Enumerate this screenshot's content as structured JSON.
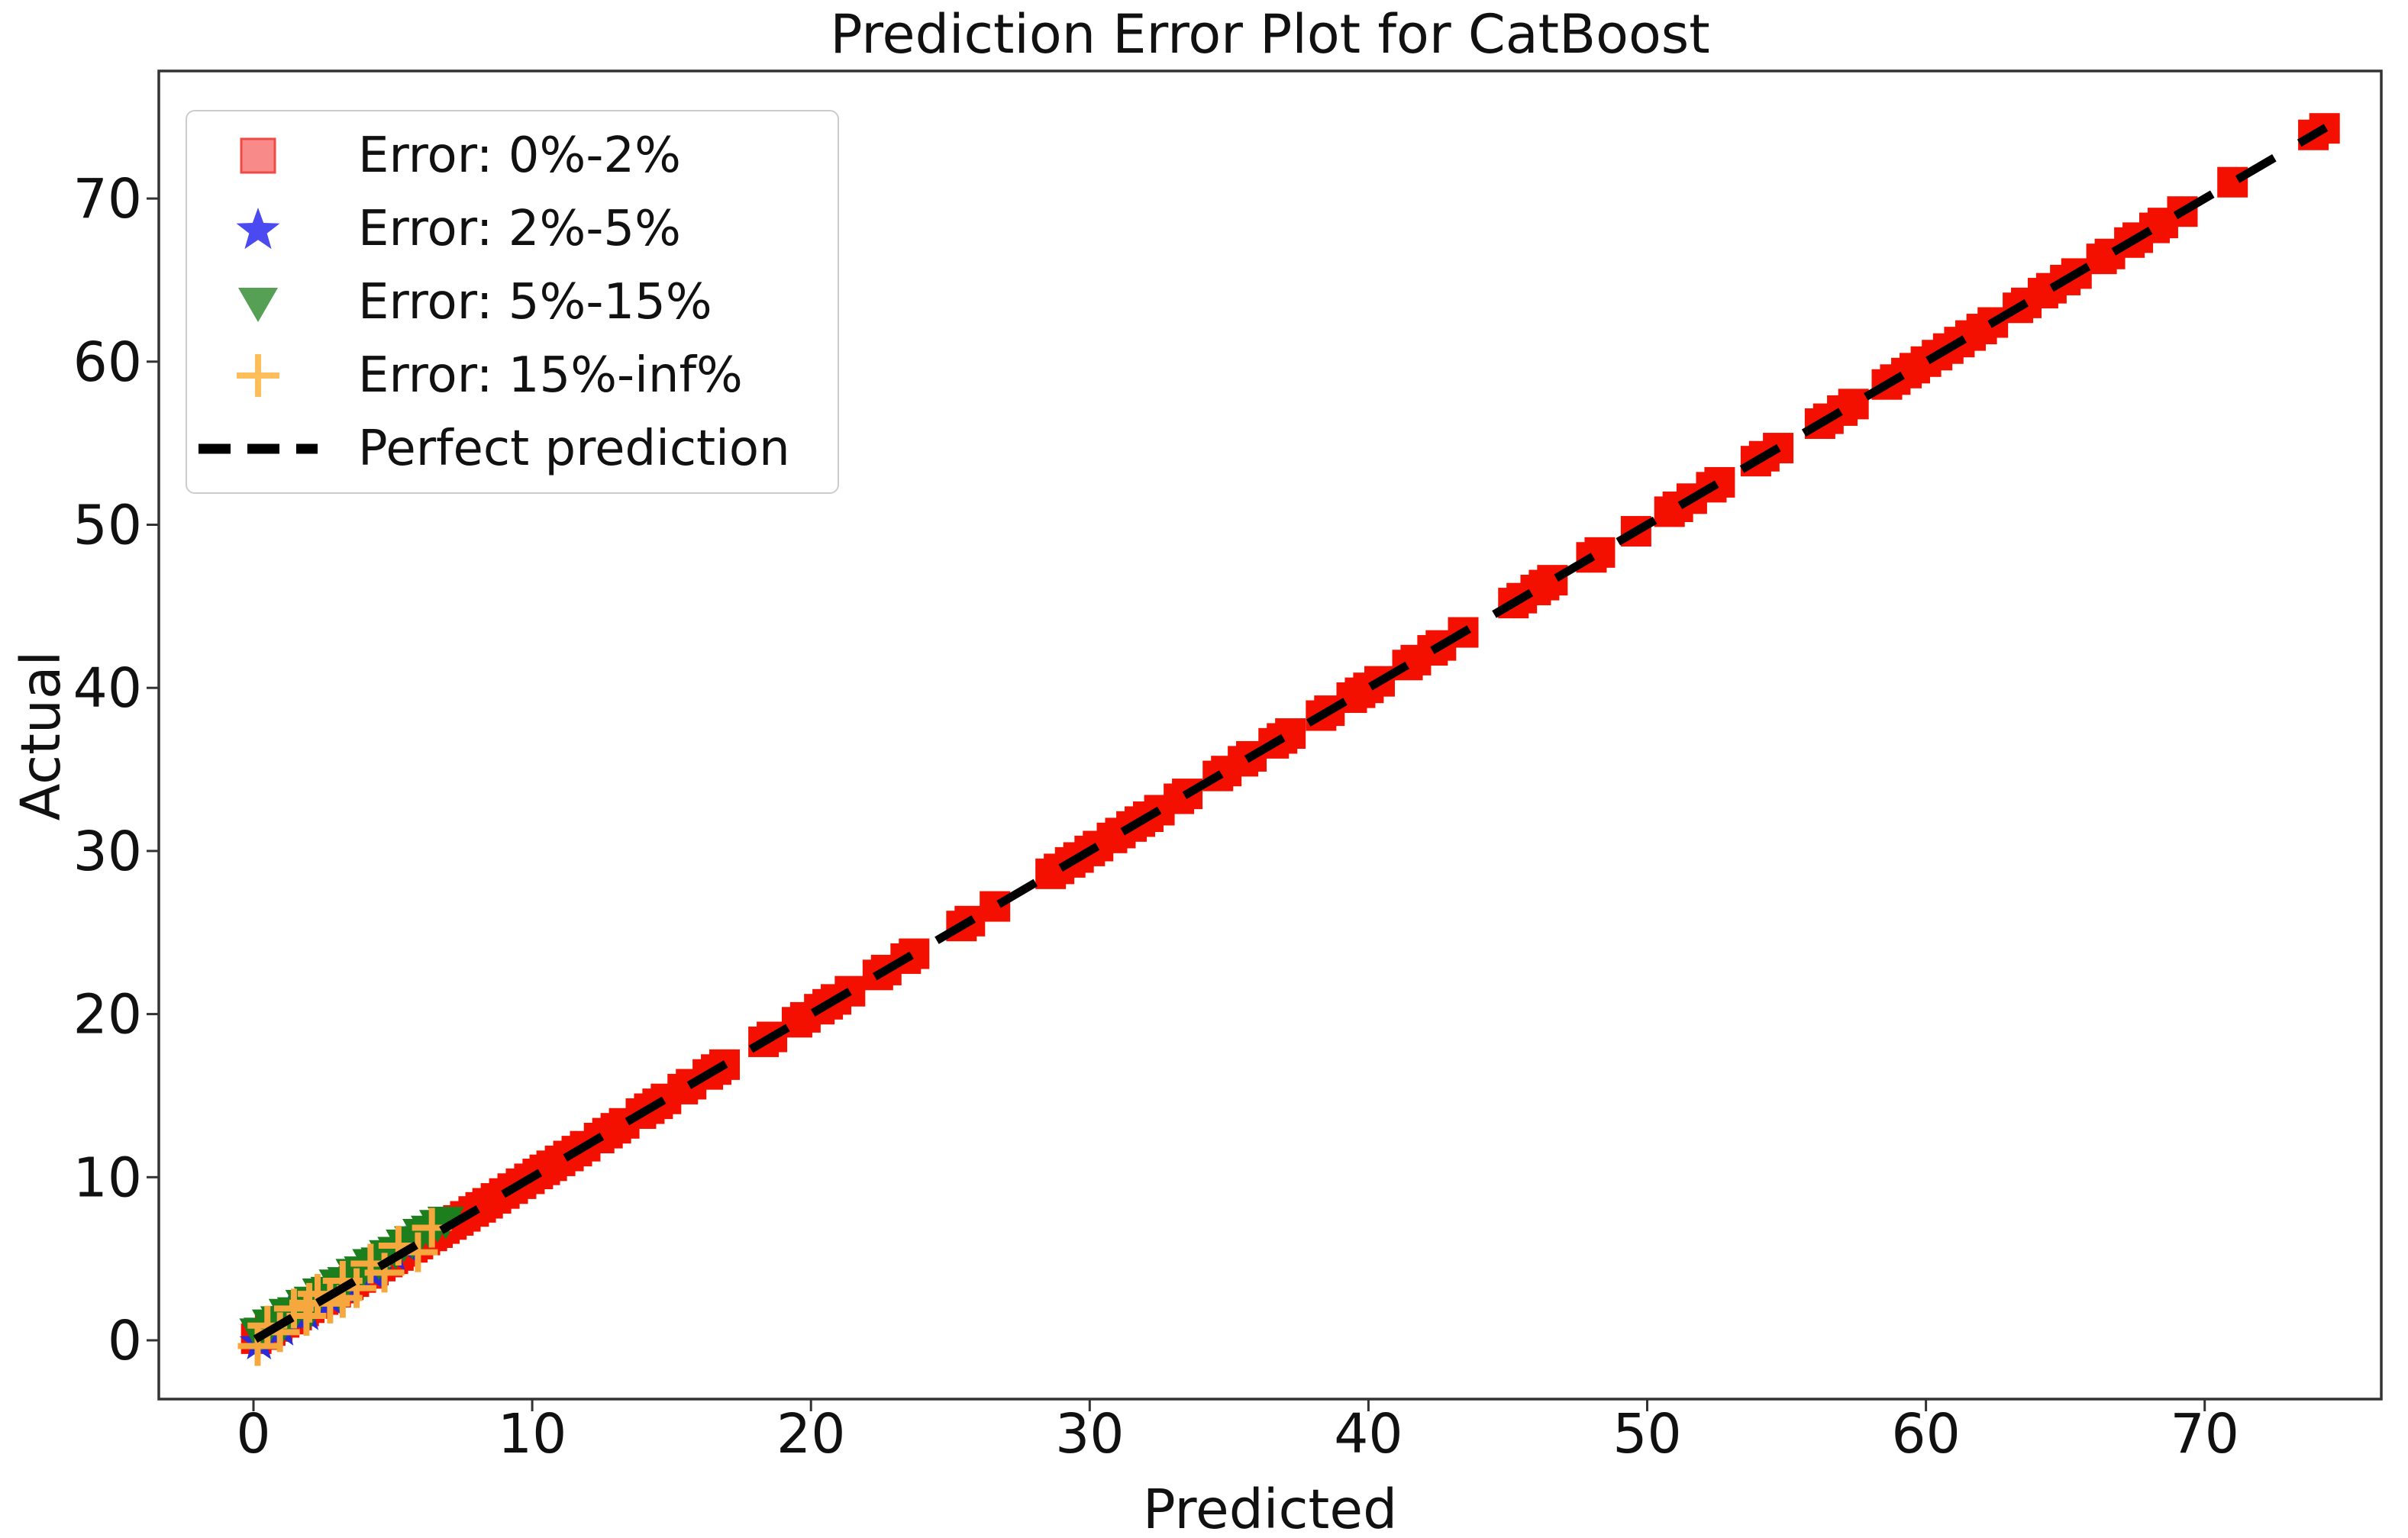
{
  "title": "Prediction Error Plot for CatBoost",
  "axes": {
    "xlabel": "Predicted",
    "ylabel": "Actual",
    "x_ticks": [
      0,
      10,
      20,
      30,
      40,
      50,
      60,
      70
    ],
    "y_ticks": [
      0,
      10,
      20,
      30,
      40,
      50,
      60,
      70
    ]
  },
  "legend": {
    "position": "upper left",
    "items": [
      {
        "label": "Error: 0%-2%",
        "marker": "square",
        "color": "#f98a8a",
        "edge_color": "#ef4a46"
      },
      {
        "label": "Error: 2%-5%",
        "marker": "star",
        "color": "#4a4af0",
        "edge_color": "#2d2dd8"
      },
      {
        "label": "Error: 5%-15%",
        "marker": "triangle_down",
        "color": "#55a055",
        "edge_color": "#347d38"
      },
      {
        "label": "Error: 15%-inf%",
        "marker": "plus",
        "color": "#ffbe5c",
        "edge_color": "#ffbe5c"
      },
      {
        "label": "Perfect prediction",
        "marker": "dashed_line",
        "color": "#000000",
        "edge_color": "#000000"
      }
    ]
  },
  "colors": {
    "background": "#ffffff",
    "frame": "#333333",
    "tick_text": "#111111",
    "series_red": "#f41000",
    "series_blue": "#2b2bd8",
    "series_green": "#1d7e1d",
    "series_orange": "#f6a83e",
    "perfect_line": "#000000"
  },
  "chart_data": {
    "type": "scatter",
    "title": "Prediction Error Plot for CatBoost",
    "xlabel": "Predicted",
    "ylabel": "Actual",
    "xlim": [
      -3.4,
      76.3
    ],
    "ylim": [
      -3.5,
      77.8
    ],
    "grid": false,
    "legend_position": "upper left",
    "reference_line": {
      "name": "Perfect prediction",
      "style": "dashed",
      "color": "#000000",
      "from": [
        0.07,
        0.07
      ],
      "to": [
        74.35,
        74.35
      ]
    },
    "series": [
      {
        "name": "Error: 0%-2%",
        "marker": "square",
        "color": "#f41000",
        "note": "points lie on y=x; list of x values",
        "points_x": [
          0.1,
          0.35,
          0.6,
          0.85,
          1.1,
          1.3,
          1.55,
          1.8,
          2.0,
          2.25,
          2.5,
          2.7,
          2.95,
          3.2,
          3.4,
          3.6,
          3.85,
          4.1,
          4.3,
          4.55,
          4.8,
          5.0,
          5.2,
          5.45,
          5.7,
          5.9,
          6.15,
          6.4,
          6.6,
          6.85,
          7.1,
          7.35,
          7.6,
          7.9,
          8.15,
          8.4,
          8.7,
          9.0,
          9.3,
          9.6,
          9.9,
          10.2,
          10.45,
          10.7,
          11.0,
          11.3,
          11.6,
          11.9,
          12.4,
          12.7,
          13.0,
          13.3,
          13.9,
          14.2,
          14.5,
          14.8,
          15.4,
          15.7,
          16.3,
          16.6,
          16.9,
          18.3,
          18.6,
          19.5,
          19.8,
          20.3,
          20.6,
          20.9,
          21.4,
          22.4,
          22.7,
          23.4,
          23.7,
          25.4,
          25.7,
          26.6,
          28.6,
          28.9,
          29.3,
          29.6,
          30.0,
          30.3,
          30.8,
          31.1,
          31.5,
          31.8,
          32.1,
          32.5,
          33.2,
          33.5,
          34.6,
          34.9,
          35.5,
          35.8,
          36.6,
          36.9,
          37.2,
          38.3,
          38.6,
          39.4,
          39.7,
          40.0,
          40.4,
          41.4,
          41.7,
          42.3,
          42.6,
          43.4,
          45.2,
          45.5,
          46.0,
          46.3,
          46.6,
          48.0,
          48.3,
          49.6,
          50.8,
          51.1,
          51.6,
          52.3,
          52.6,
          53.9,
          54.2,
          54.7,
          56.2,
          56.5,
          57.0,
          57.4,
          58.6,
          58.9,
          59.3,
          59.6,
          60.0,
          60.4,
          60.8,
          61.2,
          61.6,
          62.0,
          62.4,
          63.3,
          63.6,
          64.2,
          64.5,
          65.0,
          65.4,
          66.3,
          66.6,
          67.3,
          67.6,
          68.2,
          68.5,
          69.2,
          71.0,
          73.9,
          74.3
        ]
      },
      {
        "name": "Error: 2%-5%",
        "marker": "star",
        "color": "#2b2bd8",
        "points": [
          [
            0.2,
            -0.15
          ],
          [
            0.55,
            0.7
          ],
          [
            1.0,
            0.7
          ],
          [
            1.3,
            1.7
          ],
          [
            1.45,
            1.65
          ],
          [
            1.9,
            1.65
          ],
          [
            2.35,
            2.5
          ],
          [
            2.6,
            2.95
          ],
          [
            2.8,
            2.5
          ],
          [
            3.3,
            3.15
          ],
          [
            3.8,
            4.0
          ],
          [
            4.3,
            4.1
          ],
          [
            5.0,
            5.3
          ],
          [
            5.45,
            5.8
          ]
        ]
      },
      {
        "name": "Error: 5%-15%",
        "marker": "triangle_down",
        "color": "#1d7e1d",
        "points": [
          [
            0.15,
            0.45
          ],
          [
            0.3,
            0.5
          ],
          [
            0.6,
            1.0
          ],
          [
            0.9,
            1.2
          ],
          [
            1.0,
            0.8
          ],
          [
            1.2,
            1.65
          ],
          [
            1.5,
            1.75
          ],
          [
            1.8,
            2.2
          ],
          [
            2.0,
            1.75
          ],
          [
            2.1,
            2.4
          ],
          [
            2.4,
            2.9
          ],
          [
            2.7,
            3.0
          ],
          [
            3.0,
            3.45
          ],
          [
            3.1,
            2.9
          ],
          [
            3.3,
            3.6
          ],
          [
            3.6,
            4.1
          ],
          [
            3.9,
            4.25
          ],
          [
            4.2,
            4.7
          ],
          [
            4.5,
            4.8
          ],
          [
            4.8,
            5.25
          ],
          [
            5.1,
            5.45
          ],
          [
            5.4,
            5.9
          ],
          [
            5.7,
            6.1
          ],
          [
            6.0,
            6.55
          ],
          [
            6.3,
            6.75
          ],
          [
            6.6,
            7.1
          ],
          [
            6.9,
            7.3
          ]
        ]
      },
      {
        "name": "Error: 15%-inf%",
        "marker": "plus",
        "color": "#f6a83e",
        "points": [
          [
            0.15,
            -0.35
          ],
          [
            0.5,
            0.9
          ],
          [
            0.95,
            0.5
          ],
          [
            1.45,
            1.95
          ],
          [
            1.9,
            1.5
          ],
          [
            2.0,
            2.3
          ],
          [
            2.3,
            2.85
          ],
          [
            2.75,
            2.25
          ],
          [
            3.2,
            3.65
          ],
          [
            3.2,
            2.6
          ],
          [
            3.7,
            3.2
          ],
          [
            4.2,
            4.7
          ],
          [
            4.7,
            4.15
          ],
          [
            5.2,
            5.8
          ],
          [
            5.9,
            5.4
          ],
          [
            6.4,
            6.9
          ]
        ]
      }
    ]
  }
}
